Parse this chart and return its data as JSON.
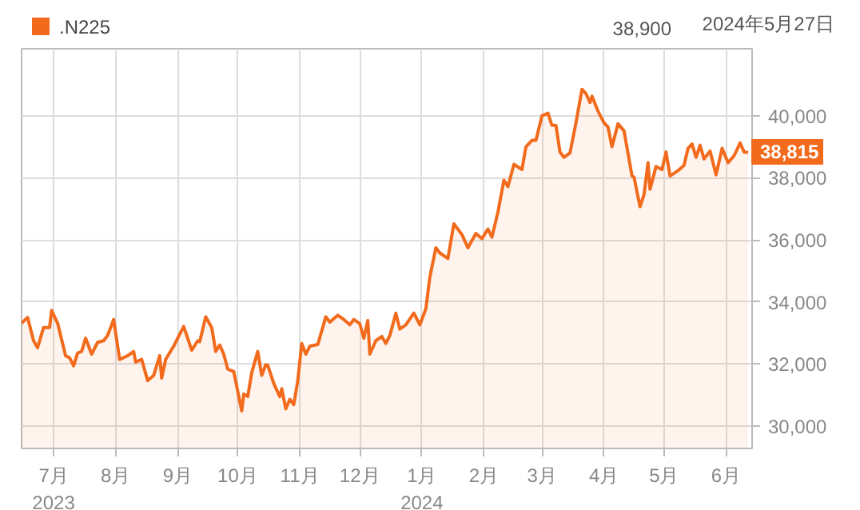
{
  "chart_data": {
    "type": "area",
    "legend": "top left",
    "grid": true,
    "xlim": [
      "2023-06-15",
      "2024-06-14"
    ],
    "ylim": [
      29280,
      42160
    ],
    "xticks": [
      {
        "value": "2023-07-01",
        "label": "7月\n2023"
      },
      {
        "value": "2023-08-01",
        "label": "8月"
      },
      {
        "value": "2023-09-01",
        "label": "9月"
      },
      {
        "value": "2023-10-01",
        "label": "10月"
      },
      {
        "value": "2023-11-01",
        "label": "11月"
      },
      {
        "value": "2023-12-01",
        "label": "12月"
      },
      {
        "value": "2024-01-01",
        "label": "1月\n2024"
      },
      {
        "value": "2024-02-01",
        "label": "2月"
      },
      {
        "value": "2024-03-01",
        "label": "3月"
      },
      {
        "value": "2024-04-01",
        "label": "4月"
      },
      {
        "value": "2024-05-01",
        "label": "5月"
      },
      {
        "value": "2024-06-01",
        "label": "6月"
      }
    ],
    "yticks": [
      {
        "value": 30000,
        "label": "30,000"
      },
      {
        "value": 32000,
        "label": "32,000"
      },
      {
        "value": 34000,
        "label": "34,000"
      },
      {
        "value": 36000,
        "label": "36,000"
      },
      {
        "value": 38000,
        "label": "38,000"
      },
      {
        "value": 40000,
        "label": "40,000"
      }
    ],
    "annotations": [
      "38,900",
      "2024年5月27日",
      {
        "text": "38,815",
        "x": "2024-06-12",
        "y": 38815
      }
    ],
    "series": [
      {
        "name": ".N225",
        "color": "#f26b1d",
        "x": [
          "2023-06-15",
          "2023-06-18",
          "2023-06-21",
          "2023-06-23",
          "2023-06-26",
          "2023-06-29",
          "2023-06-30",
          "2023-07-03",
          "2023-07-07",
          "2023-07-09",
          "2023-07-11",
          "2023-07-13",
          "2023-07-15",
          "2023-07-17",
          "2023-07-20",
          "2023-07-23",
          "2023-07-26",
          "2023-07-28",
          "2023-07-31",
          "2023-08-03",
          "2023-08-07",
          "2023-08-10",
          "2023-08-11",
          "2023-08-14",
          "2023-08-17",
          "2023-08-20",
          "2023-08-23",
          "2023-08-24",
          "2023-08-26",
          "2023-08-30",
          "2023-09-01",
          "2023-09-04",
          "2023-09-08",
          "2023-09-11",
          "2023-09-12",
          "2023-09-15",
          "2023-09-18",
          "2023-09-20",
          "2023-09-22",
          "2023-09-24",
          "2023-09-26",
          "2023-09-29",
          "2023-10-03",
          "2023-10-04",
          "2023-10-06",
          "2023-10-08",
          "2023-10-11",
          "2023-10-13",
          "2023-10-15",
          "2023-10-16",
          "2023-10-19",
          "2023-10-22",
          "2023-10-23",
          "2023-10-25",
          "2023-10-27",
          "2023-10-29",
          "2023-10-31",
          "2023-11-02",
          "2023-11-04",
          "2023-11-06",
          "2023-11-10",
          "2023-11-14",
          "2023-11-16",
          "2023-11-20",
          "2023-11-23",
          "2023-11-26",
          "2023-11-28",
          "2023-12-01",
          "2023-12-03",
          "2023-12-05",
          "2023-12-06",
          "2023-12-09",
          "2023-12-12",
          "2023-12-14",
          "2023-12-16",
          "2023-12-19",
          "2023-12-21",
          "2023-12-24",
          "2023-12-28",
          "2023-12-31",
          "2024-01-03",
          "2024-01-05",
          "2024-01-08",
          "2024-01-10",
          "2024-01-14",
          "2024-01-17",
          "2024-01-21",
          "2024-01-24",
          "2024-01-28",
          "2024-01-31",
          "2024-02-03",
          "2024-02-05",
          "2024-02-08",
          "2024-02-11",
          "2024-02-13",
          "2024-02-16",
          "2024-02-20",
          "2024-02-22",
          "2024-02-25",
          "2024-02-27",
          "2024-03-01",
          "2024-03-04",
          "2024-03-06",
          "2024-03-08",
          "2024-03-10",
          "2024-03-12",
          "2024-03-15",
          "2024-03-18",
          "2024-03-21",
          "2024-03-23",
          "2024-03-25",
          "2024-03-26",
          "2024-03-29",
          "2024-04-01",
          "2024-04-03",
          "2024-04-05",
          "2024-04-08",
          "2024-04-11",
          "2024-04-15",
          "2024-04-16",
          "2024-04-19",
          "2024-04-21",
          "2024-04-23",
          "2024-04-24",
          "2024-04-27",
          "2024-04-30",
          "2024-05-02",
          "2024-05-04",
          "2024-05-08",
          "2024-05-11",
          "2024-05-13",
          "2024-05-15",
          "2024-05-17",
          "2024-05-19",
          "2024-05-21",
          "2024-05-24",
          "2024-05-27",
          "2024-05-30",
          "2024-06-02",
          "2024-06-05",
          "2024-06-08",
          "2024-06-10",
          "2024-06-12"
        ],
        "values": [
          33317,
          33502,
          32751,
          32525,
          33178,
          33178,
          33728,
          33317,
          32268,
          32201,
          31944,
          32355,
          32407,
          32833,
          32319,
          32700,
          32751,
          32921,
          33435,
          32150,
          32268,
          32407,
          32062,
          32150,
          31466,
          31635,
          32268,
          31548,
          32150,
          32576,
          32833,
          33214,
          32443,
          32751,
          32716,
          33522,
          33178,
          32407,
          32613,
          32319,
          31841,
          31755,
          30489,
          31035,
          30950,
          31723,
          32407,
          31635,
          31978,
          31961,
          31378,
          30950,
          31207,
          30556,
          30863,
          30692,
          31466,
          32664,
          32319,
          32576,
          32627,
          33522,
          33351,
          33574,
          33435,
          33264,
          33435,
          33299,
          32833,
          33400,
          32319,
          32751,
          32887,
          32664,
          32921,
          33642,
          33127,
          33264,
          33642,
          33265,
          33780,
          34808,
          35748,
          35579,
          35403,
          36519,
          36175,
          35748,
          36210,
          36040,
          36350,
          36090,
          36895,
          37923,
          37718,
          38437,
          38266,
          39003,
          39209,
          39209,
          40000,
          40086,
          39692,
          39692,
          38833,
          38663,
          38800,
          39774,
          40854,
          40717,
          40427,
          40631,
          40152,
          39774,
          39637,
          39003,
          39742,
          39517,
          38062,
          38028,
          37070,
          37460,
          38489,
          37632,
          38369,
          38266,
          38833,
          38062,
          38233,
          38406,
          38951,
          39090,
          38663,
          39055,
          38608,
          38865,
          38097,
          38951,
          38489,
          38715,
          39126,
          38833,
          38815
        ]
      }
    ]
  }
}
